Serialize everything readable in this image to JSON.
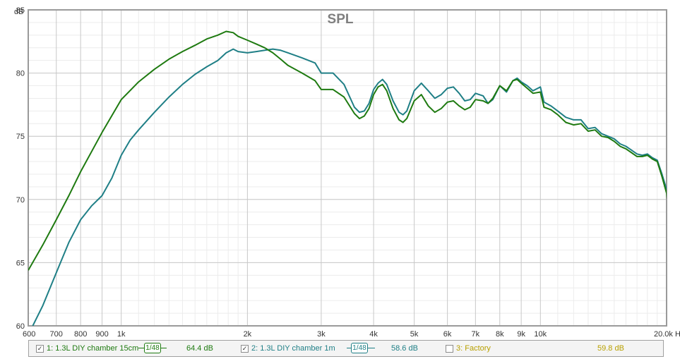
{
  "chart_data": {
    "type": "line",
    "title": "SPL",
    "ylabel": "dB",
    "xunit": "Hz",
    "xscale": "log",
    "xlim": [
      600,
      20000
    ],
    "ylim": [
      60,
      85
    ],
    "grid": true,
    "x_ticks": [
      {
        "value": 600,
        "label": "600"
      },
      {
        "value": 700,
        "label": "700"
      },
      {
        "value": 800,
        "label": "800"
      },
      {
        "value": 900,
        "label": "900"
      },
      {
        "value": 1000,
        "label": "1k"
      },
      {
        "value": 2000,
        "label": "2k"
      },
      {
        "value": 3000,
        "label": "3k"
      },
      {
        "value": 4000,
        "label": "4k"
      },
      {
        "value": 5000,
        "label": "5k"
      },
      {
        "value": 6000,
        "label": "6k"
      },
      {
        "value": 7000,
        "label": "7k"
      },
      {
        "value": 8000,
        "label": "8k"
      },
      {
        "value": 9000,
        "label": "9k"
      },
      {
        "value": 10000,
        "label": "10k"
      },
      {
        "value": 20000,
        "label": "20.0k Hz"
      }
    ],
    "y_ticks": [
      {
        "value": 60,
        "label": "60"
      },
      {
        "value": 65,
        "label": "65"
      },
      {
        "value": 70,
        "label": "70"
      },
      {
        "value": 75,
        "label": "75"
      },
      {
        "value": 80,
        "label": "80"
      },
      {
        "value": 85,
        "label": "85"
      }
    ],
    "series": [
      {
        "name": "1: 1.3L DIY chamber 15cm",
        "color": "#1e7a10",
        "checked": true,
        "smoothing": "1/48",
        "level": "64.4 dB",
        "points": [
          [
            600,
            64.4
          ],
          [
            650,
            66.4
          ],
          [
            700,
            68.4
          ],
          [
            750,
            70.3
          ],
          [
            800,
            72.2
          ],
          [
            900,
            75.3
          ],
          [
            1000,
            77.9
          ],
          [
            1100,
            79.3
          ],
          [
            1200,
            80.3
          ],
          [
            1300,
            81.1
          ],
          [
            1400,
            81.7
          ],
          [
            1500,
            82.2
          ],
          [
            1600,
            82.7
          ],
          [
            1700,
            83.0
          ],
          [
            1780,
            83.3
          ],
          [
            1850,
            83.2
          ],
          [
            1900,
            82.9
          ],
          [
            2000,
            82.6
          ],
          [
            2100,
            82.3
          ],
          [
            2200,
            82.0
          ],
          [
            2300,
            81.6
          ],
          [
            2400,
            81.1
          ],
          [
            2500,
            80.6
          ],
          [
            2700,
            80.0
          ],
          [
            2900,
            79.4
          ],
          [
            3000,
            78.7
          ],
          [
            3200,
            78.7
          ],
          [
            3400,
            78.1
          ],
          [
            3600,
            76.8
          ],
          [
            3700,
            76.4
          ],
          [
            3800,
            76.6
          ],
          [
            3900,
            77.2
          ],
          [
            4000,
            78.3
          ],
          [
            4100,
            78.9
          ],
          [
            4200,
            79.1
          ],
          [
            4300,
            78.6
          ],
          [
            4450,
            77.2
          ],
          [
            4600,
            76.3
          ],
          [
            4700,
            76.1
          ],
          [
            4800,
            76.4
          ],
          [
            5000,
            77.8
          ],
          [
            5200,
            78.3
          ],
          [
            5400,
            77.4
          ],
          [
            5600,
            76.9
          ],
          [
            5800,
            77.2
          ],
          [
            6000,
            77.7
          ],
          [
            6200,
            77.8
          ],
          [
            6400,
            77.4
          ],
          [
            6600,
            77.1
          ],
          [
            6800,
            77.3
          ],
          [
            7000,
            77.9
          ],
          [
            7300,
            77.8
          ],
          [
            7500,
            77.6
          ],
          [
            7700,
            78.0
          ],
          [
            8000,
            79.0
          ],
          [
            8300,
            78.6
          ],
          [
            8600,
            79.4
          ],
          [
            8800,
            79.5
          ],
          [
            9000,
            79.2
          ],
          [
            9300,
            78.8
          ],
          [
            9600,
            78.4
          ],
          [
            10000,
            78.5
          ],
          [
            10200,
            77.3
          ],
          [
            10600,
            77.1
          ],
          [
            11000,
            76.7
          ],
          [
            11500,
            76.1
          ],
          [
            12000,
            75.9
          ],
          [
            12500,
            76.0
          ],
          [
            13000,
            75.4
          ],
          [
            13500,
            75.5
          ],
          [
            14000,
            75.0
          ],
          [
            14500,
            74.9
          ],
          [
            15000,
            74.6
          ],
          [
            15500,
            74.2
          ],
          [
            16000,
            74.0
          ],
          [
            16500,
            73.7
          ],
          [
            17000,
            73.4
          ],
          [
            17500,
            73.4
          ],
          [
            18000,
            73.5
          ],
          [
            18500,
            73.2
          ],
          [
            19000,
            73.0
          ],
          [
            19500,
            71.8
          ],
          [
            20000,
            70.5
          ],
          [
            20400,
            68.0
          ],
          [
            20800,
            64.0
          ],
          [
            21200,
            60.0
          ]
        ]
      },
      {
        "name": "2: 1.3L DIY chamber 1m",
        "color": "#1f7f86",
        "checked": true,
        "smoothing": "1/48",
        "level": "58.6 dB",
        "points": [
          [
            615,
            60.0
          ],
          [
            650,
            61.6
          ],
          [
            700,
            64.2
          ],
          [
            750,
            66.6
          ],
          [
            800,
            68.4
          ],
          [
            850,
            69.5
          ],
          [
            900,
            70.3
          ],
          [
            950,
            71.7
          ],
          [
            1000,
            73.5
          ],
          [
            1050,
            74.7
          ],
          [
            1100,
            75.5
          ],
          [
            1200,
            76.9
          ],
          [
            1300,
            78.1
          ],
          [
            1400,
            79.1
          ],
          [
            1500,
            79.9
          ],
          [
            1600,
            80.5
          ],
          [
            1700,
            81.0
          ],
          [
            1780,
            81.6
          ],
          [
            1850,
            81.9
          ],
          [
            1900,
            81.7
          ],
          [
            2000,
            81.6
          ],
          [
            2100,
            81.7
          ],
          [
            2200,
            81.8
          ],
          [
            2300,
            81.9
          ],
          [
            2400,
            81.8
          ],
          [
            2500,
            81.6
          ],
          [
            2700,
            81.2
          ],
          [
            2900,
            80.8
          ],
          [
            3000,
            80.0
          ],
          [
            3200,
            80.0
          ],
          [
            3400,
            79.1
          ],
          [
            3600,
            77.3
          ],
          [
            3700,
            76.9
          ],
          [
            3800,
            77.0
          ],
          [
            3900,
            77.6
          ],
          [
            4000,
            78.7
          ],
          [
            4100,
            79.2
          ],
          [
            4200,
            79.5
          ],
          [
            4300,
            79.1
          ],
          [
            4450,
            77.8
          ],
          [
            4600,
            76.9
          ],
          [
            4700,
            76.7
          ],
          [
            4800,
            77.0
          ],
          [
            5000,
            78.6
          ],
          [
            5200,
            79.2
          ],
          [
            5400,
            78.6
          ],
          [
            5600,
            78.0
          ],
          [
            5800,
            78.3
          ],
          [
            6000,
            78.8
          ],
          [
            6200,
            78.9
          ],
          [
            6400,
            78.4
          ],
          [
            6600,
            77.8
          ],
          [
            6800,
            77.9
          ],
          [
            7000,
            78.4
          ],
          [
            7300,
            78.2
          ],
          [
            7500,
            77.6
          ],
          [
            7700,
            77.9
          ],
          [
            8000,
            79.0
          ],
          [
            8300,
            78.5
          ],
          [
            8600,
            79.4
          ],
          [
            8800,
            79.6
          ],
          [
            9000,
            79.3
          ],
          [
            9300,
            79.0
          ],
          [
            9600,
            78.6
          ],
          [
            10000,
            78.9
          ],
          [
            10200,
            77.7
          ],
          [
            10600,
            77.4
          ],
          [
            11000,
            77.0
          ],
          [
            11500,
            76.5
          ],
          [
            12000,
            76.3
          ],
          [
            12500,
            76.3
          ],
          [
            13000,
            75.6
          ],
          [
            13500,
            75.7
          ],
          [
            14000,
            75.2
          ],
          [
            14500,
            75.0
          ],
          [
            15000,
            74.8
          ],
          [
            15500,
            74.4
          ],
          [
            16000,
            74.2
          ],
          [
            16500,
            73.9
          ],
          [
            17000,
            73.6
          ],
          [
            17500,
            73.5
          ],
          [
            18000,
            73.6
          ],
          [
            18500,
            73.3
          ],
          [
            19000,
            73.1
          ],
          [
            19500,
            72.0
          ],
          [
            20000,
            70.8
          ],
          [
            20400,
            68.3
          ],
          [
            20800,
            64.3
          ],
          [
            21200,
            60.0
          ]
        ]
      },
      {
        "name": "3: Factory",
        "color": "#b8a000",
        "checked": false,
        "level": "59.8 dB",
        "points": []
      }
    ]
  }
}
